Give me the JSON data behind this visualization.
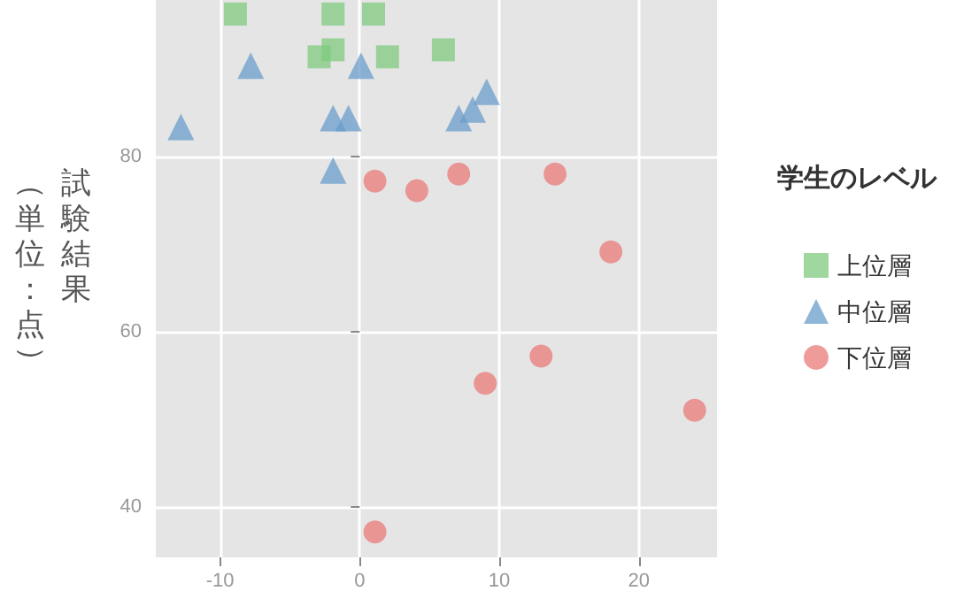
{
  "chart_data": {
    "type": "scatter",
    "ylabel": "試験結果（単位：点）",
    "legend_title": "学生のレベル",
    "xlim": [
      -14.6,
      25.6
    ],
    "xticks": [
      -10,
      0,
      10,
      20
    ],
    "ylim": [
      34.2,
      97.9
    ],
    "yticks": [
      40,
      60,
      80
    ],
    "grid": true,
    "legend": "right",
    "series": [
      {
        "name": "上位層",
        "color": "#7fc97f",
        "marker": "square",
        "x": [
          -8.9,
          -1.9,
          1.0,
          -1.9,
          -2.9,
          2.0,
          6.0
        ],
        "values": [
          96.3,
          96.3,
          96.3,
          92.2,
          91.4,
          91.4,
          92.2
        ]
      },
      {
        "name": "中位層",
        "color": "#6a9ecb",
        "marker": "triangle",
        "x": [
          -7.8,
          0.1,
          -12.8,
          -1.9,
          -0.8,
          7.1,
          8.1,
          9.1,
          -1.9
        ],
        "values": [
          90.4,
          90.4,
          83.4,
          84.4,
          84.4,
          84.4,
          85.4,
          87.4,
          78.4
        ]
      },
      {
        "name": "下位層",
        "color": "#e87a78",
        "marker": "circle",
        "x": [
          1.1,
          4.1,
          7.1,
          14.0,
          18.0,
          13.0,
          9.0,
          24.0,
          1.1
        ],
        "values": [
          77.2,
          76.1,
          78.0,
          78.0,
          69.1,
          57.2,
          54.1,
          51.0,
          37.1
        ]
      }
    ]
  }
}
